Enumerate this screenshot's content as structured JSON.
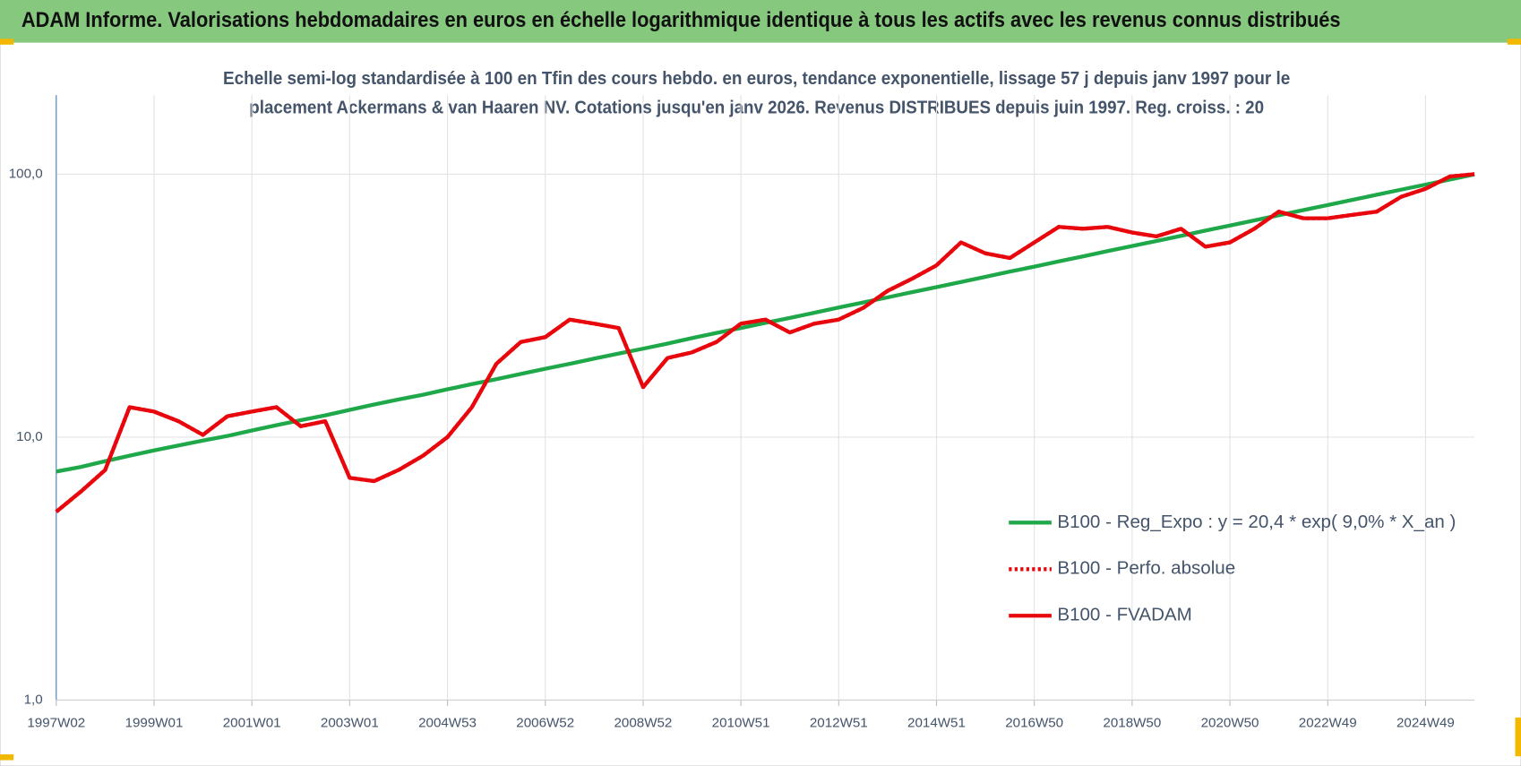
{
  "header": {
    "title": "ADAM Informe. Valorisations hebdomadaires en euros en échelle logarithmique identique à tous les actifs avec les revenus connus distribués"
  },
  "chart_data": {
    "type": "line",
    "subtitle": [
      "Echelle semi-log standardisée à 100 en Tfin des cours hebdo. en euros, tendance exponentielle, lissage 57 j depuis janv 1997 pour le",
      "placement Ackermans & van Haaren NV. Cotations jusqu'en janv 2026.  Revenus DISTRIBUES depuis juin 1997. Reg.  croiss. : 20"
    ],
    "categories": [
      "1997W02",
      null,
      null,
      null,
      "1999W01",
      null,
      null,
      null,
      "2001W01",
      null,
      null,
      null,
      "2003W01",
      null,
      null,
      null,
      "2004W53",
      null,
      null,
      null,
      "2006W52",
      null,
      null,
      null,
      "2008W52",
      null,
      null,
      null,
      "2010W51",
      null,
      null,
      null,
      "2012W51",
      null,
      null,
      null,
      "2014W51",
      null,
      null,
      null,
      "2016W50",
      null,
      null,
      null,
      "2018W50",
      null,
      null,
      null,
      "2020W50",
      null,
      null,
      null,
      "2022W49",
      null,
      null,
      null,
      "2024W49",
      null,
      null
    ],
    "series": [
      {
        "name": "B100 - Reg_Expo : y = 20,4 * exp( 9,0% *  X_an )",
        "color": "#1fa84a",
        "style": "solid",
        "values": [
          7.4,
          7.7,
          8.1,
          8.5,
          8.9,
          9.3,
          9.7,
          10.1,
          10.6,
          11.1,
          11.6,
          12.1,
          12.7,
          13.3,
          13.9,
          14.5,
          15.2,
          15.9,
          16.6,
          17.4,
          18.2,
          19.0,
          19.9,
          20.8,
          21.7,
          22.7,
          23.8,
          24.9,
          26.0,
          27.2,
          28.4,
          29.7,
          31.1,
          32.5,
          34.0,
          35.6,
          37.2,
          38.9,
          40.7,
          42.6,
          44.5,
          46.6,
          48.7,
          51.0,
          53.3,
          55.7,
          58.3,
          61.0,
          63.8,
          66.7,
          69.8,
          73.0,
          76.3,
          79.8,
          83.5,
          87.3,
          91.3,
          95.5,
          99.9
        ]
      },
      {
        "name": "B100 - Perfo. absolue",
        "color": "#e8070c",
        "style": "dotted",
        "values": [
          5.2,
          6.2,
          7.5,
          13,
          12.5,
          11.5,
          10.2,
          12,
          12.5,
          13,
          11,
          11.5,
          7,
          6.8,
          7.5,
          8.5,
          10,
          13,
          19,
          23,
          24,
          28,
          27,
          26,
          15.5,
          20,
          21,
          23,
          27,
          28,
          25,
          27,
          28,
          31,
          36,
          40,
          45,
          55,
          50,
          48,
          55,
          63,
          62,
          63,
          60,
          58,
          62,
          53,
          55,
          62,
          72,
          68,
          68,
          70,
          72,
          82,
          88,
          98,
          100
        ]
      },
      {
        "name": "B100 - FVADAM",
        "color": "#e8070c",
        "style": "solid",
        "values": [
          5.2,
          6.2,
          7.5,
          13,
          12.5,
          11.5,
          10.2,
          12,
          12.5,
          13,
          11,
          11.5,
          7,
          6.8,
          7.5,
          8.5,
          10,
          13,
          19,
          23,
          24,
          28,
          27,
          26,
          15.5,
          20,
          21,
          23,
          27,
          28,
          25,
          27,
          28,
          31,
          36,
          40,
          45,
          55,
          50,
          48,
          55,
          63,
          62,
          63,
          60,
          58,
          62,
          53,
          55,
          62,
          72,
          68,
          68,
          70,
          72,
          82,
          88,
          98,
          100
        ]
      }
    ],
    "log_scale": true,
    "ylim": [
      1,
      200
    ],
    "yticks": [
      {
        "value": 1,
        "label": "1,0"
      },
      {
        "value": 10,
        "label": "10,0"
      },
      {
        "value": 100,
        "label": "100,0"
      }
    ],
    "grid": true,
    "legend": "lower right"
  }
}
